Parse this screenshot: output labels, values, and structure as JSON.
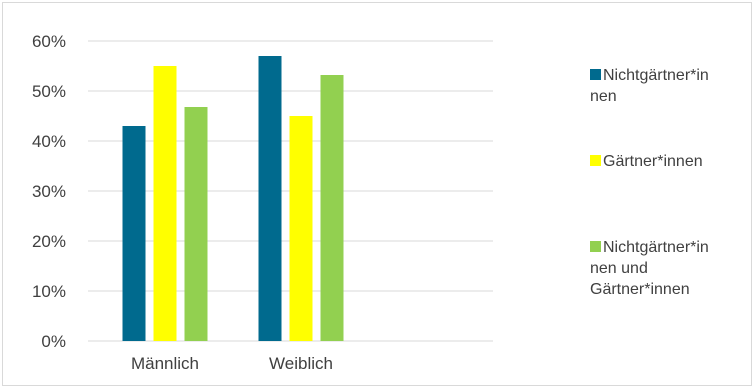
{
  "chart_data": {
    "type": "bar",
    "title": "",
    "xlabel": "",
    "ylabel": "",
    "categories": [
      "Männlich",
      "Weiblich"
    ],
    "series": [
      {
        "name": "Nichtgärtner*innen",
        "legend_lines": [
          "Nichtgärtner*in",
          "nen"
        ],
        "values": [
          0.43,
          0.57
        ],
        "color": "#006a8e"
      },
      {
        "name": "Gärtner*innen",
        "legend_lines": [
          "Gärtner*innen"
        ],
        "values": [
          0.55,
          0.45
        ],
        "color": "#ffff00"
      },
      {
        "name": "Nichtgärtner*innen und Gärtner*innen",
        "legend_lines": [
          "Nichtgärtner*in",
          "nen und",
          "Gärtner*innen"
        ],
        "values": [
          0.468,
          0.532
        ],
        "color": "#92d050"
      }
    ],
    "ylim": [
      0,
      0.6
    ],
    "yticks": [
      {
        "value": 0,
        "label": "0%"
      },
      {
        "value": 0.1,
        "label": "10%"
      },
      {
        "value": 0.2,
        "label": "20%"
      },
      {
        "value": 0.3,
        "label": "30%"
      },
      {
        "value": 0.4,
        "label": "40%"
      },
      {
        "value": 0.5,
        "label": "50%"
      },
      {
        "value": 0.6,
        "label": "60%"
      }
    ],
    "grid": true,
    "legend_position": "right"
  }
}
